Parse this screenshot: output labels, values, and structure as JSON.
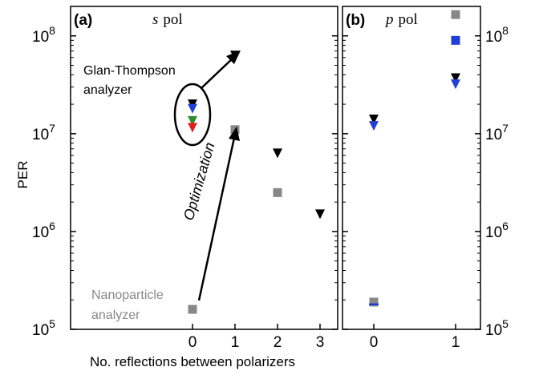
{
  "chart_data": [
    {
      "type": "scatter",
      "panel": "(a)",
      "panel_label": "s pol",
      "pol_symbol": "s",
      "pol_text": "pol",
      "xlabel": "No. reflections between polarizers",
      "ylabel": "PER",
      "xlim": [
        -0.55,
        3.5
      ],
      "ylim": [
        100000,
        200000000
      ],
      "yscale": "log",
      "x_ticks": [
        0,
        1,
        2,
        3
      ],
      "x_tick_labels": [
        "0",
        "1",
        "2",
        "3"
      ],
      "y_ticks": [
        100000,
        1000000,
        10000000,
        100000000
      ],
      "y_tick_labels": [
        {
          "base": "10",
          "exp": "5"
        },
        {
          "base": "10",
          "exp": "6"
        },
        {
          "base": "10",
          "exp": "7"
        },
        {
          "base": "10",
          "exp": "8"
        }
      ],
      "series": [
        {
          "marker": "triangle-down",
          "color": "#000000",
          "points": [
            [
              0,
              20000000
            ],
            [
              1,
              63000000
            ],
            [
              2,
              6300000
            ],
            [
              3,
              1500000
            ]
          ]
        },
        {
          "marker": "triangle-down",
          "color": "#1f3fd6",
          "points": [
            [
              0,
              18000000
            ]
          ]
        },
        {
          "marker": "triangle-down",
          "color": "#2e8b2e",
          "points": [
            [
              0,
              13500000
            ]
          ]
        },
        {
          "marker": "triangle-down",
          "color": "#e0201a",
          "points": [
            [
              0,
              11500000
            ]
          ]
        },
        {
          "marker": "square",
          "color": "#888888",
          "points": [
            [
              0,
              160000
            ],
            [
              1,
              11000000
            ],
            [
              2,
              2500000
            ]
          ]
        }
      ],
      "annotations": {
        "glan_thompson": [
          "Glan-Thompson",
          "analyzer"
        ],
        "optimization": "Optimization",
        "nanoparticle": [
          "Nanoparticle",
          "analyzer"
        ]
      }
    },
    {
      "type": "scatter",
      "panel": "(b)",
      "panel_label": "p pol",
      "pol_symbol": "p",
      "pol_text": "pol",
      "ylim": [
        100000,
        200000000
      ],
      "yscale": "log",
      "x_ticks": [
        0,
        1
      ],
      "x_tick_labels": [
        "0",
        "1"
      ],
      "y_ticks": [
        100000,
        1000000,
        10000000,
        100000000
      ],
      "y_tick_labels": [
        {
          "base": "10",
          "exp": "5"
        },
        {
          "base": "10",
          "exp": "6"
        },
        {
          "base": "10",
          "exp": "7"
        },
        {
          "base": "10",
          "exp": "8"
        }
      ],
      "series": [
        {
          "marker": "triangle-down",
          "color": "#000000",
          "points": [
            [
              0,
              14000000
            ],
            [
              1,
              37000000
            ]
          ]
        },
        {
          "marker": "triangle-down",
          "color": "#1f3fd6",
          "points": [
            [
              0,
              12000000
            ],
            [
              1,
              32000000
            ]
          ]
        },
        {
          "marker": "square",
          "color": "#1f3fd6",
          "points": [
            [
              1,
              90000000
            ]
          ]
        },
        {
          "marker": "square",
          "color": "#888888",
          "points": [
            [
              0,
              190000
            ],
            [
              1,
              165000000
            ]
          ]
        },
        {
          "marker": "hline",
          "color": "#1f3fd6",
          "points": [
            [
              0,
              180000
            ]
          ]
        }
      ]
    }
  ]
}
